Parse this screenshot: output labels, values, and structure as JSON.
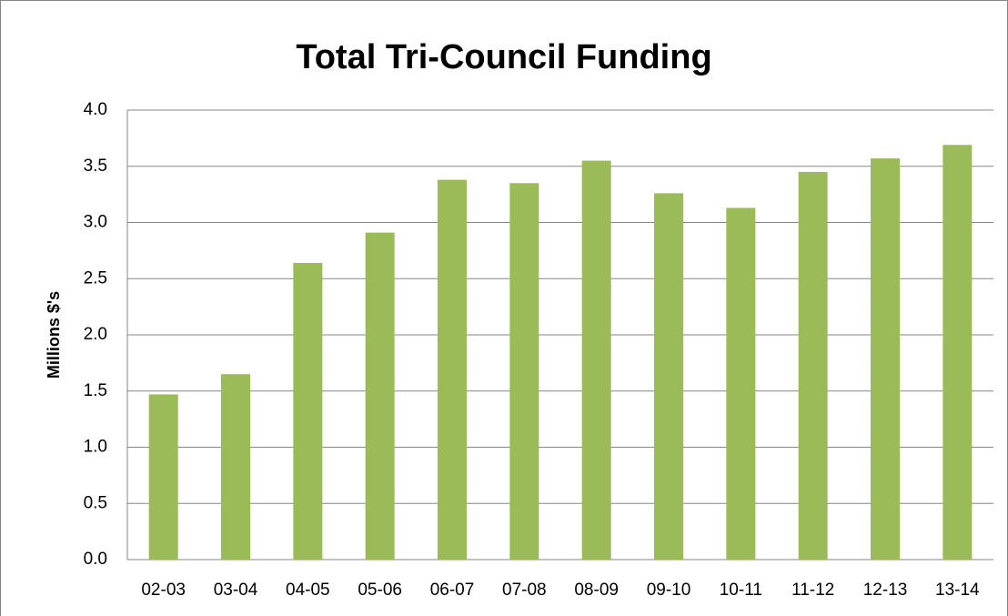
{
  "chart_data": {
    "type": "bar",
    "title": "Total Tri-Council Funding",
    "y_label": "Millions  $'s",
    "categories": [
      "02-03",
      "03-04",
      "04-05",
      "05-06",
      "06-07",
      "07-08",
      "08-09",
      "09-10",
      "10-11",
      "11-12",
      "12-13",
      "13-14"
    ],
    "values": [
      1.47,
      1.65,
      2.64,
      2.91,
      3.38,
      3.35,
      3.55,
      3.26,
      3.13,
      3.45,
      3.57,
      3.69
    ],
    "color": "#9bbb59",
    "ylim": [
      0,
      4
    ],
    "yticks": [
      {
        "value": 0,
        "label": "0.0"
      },
      0.5,
      {
        "value": 1,
        "label": "1.0"
      },
      1.5,
      {
        "value": 2,
        "label": "2.0"
      },
      2.5,
      {
        "value": 3,
        "label": "3.0"
      },
      3.5,
      {
        "value": 4,
        "label": "4.0"
      }
    ],
    "grid": true
  }
}
